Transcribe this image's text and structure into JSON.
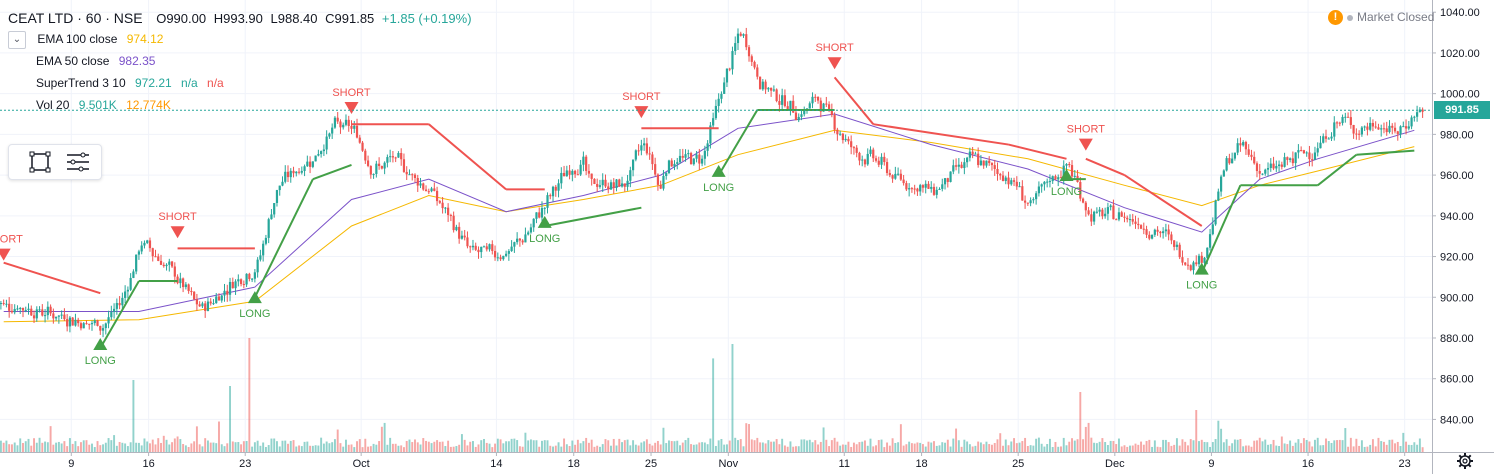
{
  "header": {
    "symbol": "CEAT LTD · 60 · NSE",
    "open": "O990.00",
    "high": "H993.90",
    "low": "L988.40",
    "close": "C991.85",
    "change": "+1.85 (+0.19%)",
    "change_color": "#26a69a"
  },
  "status": {
    "label": "Market Closed",
    "icon": "warning-icon"
  },
  "indicators": [
    {
      "name": "EMA 100 close",
      "values": [
        "974.12"
      ],
      "colors": [
        "#f5b800"
      ]
    },
    {
      "name": "EMA 50 close",
      "values": [
        "982.35"
      ],
      "colors": [
        "#7b52c9"
      ]
    },
    {
      "name": "SuperTrend 3 10",
      "values": [
        "972.21",
        "n/a",
        "n/a"
      ],
      "colors": [
        "#26a69a",
        "#26a69a",
        "#ef5350"
      ]
    },
    {
      "name": "Vol 20",
      "values": [
        "9.501K",
        "12.774K"
      ],
      "colors": [
        "#26a69a",
        "#ff9800"
      ]
    }
  ],
  "toolbox": {
    "tools": [
      "rectangle-icon",
      "list-settings-icon"
    ]
  },
  "price_tag": "991.85",
  "colors": {
    "up": "#26a69a",
    "down": "#ef5350",
    "ema100": "#f5b800",
    "ema50": "#7b52c9",
    "st_long": "#43a047",
    "st_short": "#ef5350"
  },
  "chart_data": {
    "type": "candlestick",
    "y_axis": {
      "ticks": [
        "840.00",
        "860.00",
        "880.00",
        "900.00",
        "920.00",
        "940.00",
        "960.00",
        "980.00",
        "1000.00",
        "1020.00",
        "1040.00"
      ],
      "range": [
        824,
        1046
      ]
    },
    "x_axis": {
      "ticks": [
        "9",
        "16",
        "23",
        "Oct",
        "14",
        "18",
        "25",
        "Nov",
        "11",
        "18",
        "25",
        "Dec",
        "9",
        "16",
        "23"
      ]
    },
    "trend": [
      {
        "d": "Sep 3",
        "p": 897
      },
      {
        "d": "Sep 9",
        "p": 888
      },
      {
        "d": "Sep 11",
        "p": 886
      },
      {
        "d": "Sep 12",
        "p": 899
      },
      {
        "d": "Sep 13",
        "p": 928
      },
      {
        "d": "Sep 16",
        "p": 918
      },
      {
        "d": "Sep 17",
        "p": 907
      },
      {
        "d": "Sep 18",
        "p": 893
      },
      {
        "d": "Sep 20",
        "p": 910
      },
      {
        "d": "Sep 23",
        "p": 915
      },
      {
        "d": "Sep 24",
        "p": 955
      },
      {
        "d": "Sep 26",
        "p": 970
      },
      {
        "d": "Sep 27",
        "p": 985
      },
      {
        "d": "Sep 30",
        "p": 982
      },
      {
        "d": "Oct 1",
        "p": 962
      },
      {
        "d": "Oct 3",
        "p": 968
      },
      {
        "d": "Oct 7",
        "p": 952
      },
      {
        "d": "Oct 10",
        "p": 922
      },
      {
        "d": "Oct 14",
        "p": 922
      },
      {
        "d": "Oct 15",
        "p": 932
      },
      {
        "d": "Oct 16",
        "p": 948
      },
      {
        "d": "Oct 17",
        "p": 962
      },
      {
        "d": "Oct 18",
        "p": 968
      },
      {
        "d": "Oct 21",
        "p": 960
      },
      {
        "d": "Oct 23",
        "p": 955
      },
      {
        "d": "Oct 24",
        "p": 978
      },
      {
        "d": "Oct 25",
        "p": 948
      },
      {
        "d": "Oct 28",
        "p": 960
      },
      {
        "d": "Oct 30",
        "p": 968
      },
      {
        "d": "Oct 31",
        "p": 1002
      },
      {
        "d": "Nov 1",
        "p": 1032
      },
      {
        "d": "Nov 4",
        "p": 1005
      },
      {
        "d": "Nov 5",
        "p": 998
      },
      {
        "d": "Nov 6",
        "p": 990
      },
      {
        "d": "Nov 7",
        "p": 998
      },
      {
        "d": "Nov 8",
        "p": 983
      },
      {
        "d": "Nov 11",
        "p": 970
      },
      {
        "d": "Nov 13",
        "p": 968
      },
      {
        "d": "Nov 14",
        "p": 958
      },
      {
        "d": "Nov 18",
        "p": 952
      },
      {
        "d": "Nov 19",
        "p": 962
      },
      {
        "d": "Nov 20",
        "p": 968
      },
      {
        "d": "Nov 22",
        "p": 958
      },
      {
        "d": "Nov 25",
        "p": 944
      },
      {
        "d": "Nov 26",
        "p": 958
      },
      {
        "d": "Nov 27",
        "p": 965
      },
      {
        "d": "Nov 28",
        "p": 940
      },
      {
        "d": "Nov 29",
        "p": 940
      },
      {
        "d": "Dec 2",
        "p": 940
      },
      {
        "d": "Dec 4",
        "p": 930
      },
      {
        "d": "Dec 5",
        "p": 918
      },
      {
        "d": "Dec 6",
        "p": 920
      },
      {
        "d": "Dec 9",
        "p": 965
      },
      {
        "d": "Dec 10",
        "p": 975
      },
      {
        "d": "Dec 11",
        "p": 960
      },
      {
        "d": "Dec 12",
        "p": 965
      },
      {
        "d": "Dec 16",
        "p": 975
      },
      {
        "d": "Dec 17",
        "p": 988
      },
      {
        "d": "Dec 18",
        "p": 982
      },
      {
        "d": "Dec 19",
        "p": 985
      },
      {
        "d": "Dec 20",
        "p": 980
      },
      {
        "d": "Dec 23",
        "p": 992
      }
    ],
    "ema50": [
      {
        "d": "Sep 3",
        "p": 893
      },
      {
        "d": "Sep 13",
        "p": 893
      },
      {
        "d": "Sep 23",
        "p": 905
      },
      {
        "d": "Sep 30",
        "p": 948
      },
      {
        "d": "Oct 7",
        "p": 958
      },
      {
        "d": "Oct 14",
        "p": 942
      },
      {
        "d": "Oct 18",
        "p": 950
      },
      {
        "d": "Oct 25",
        "p": 960
      },
      {
        "d": "Nov 1",
        "p": 983
      },
      {
        "d": "Nov 8",
        "p": 990
      },
      {
        "d": "Nov 18",
        "p": 975
      },
      {
        "d": "Nov 25",
        "p": 963
      },
      {
        "d": "Dec 2",
        "p": 944
      },
      {
        "d": "Dec 6",
        "p": 932
      },
      {
        "d": "Dec 11",
        "p": 958
      },
      {
        "d": "Dec 16",
        "p": 968
      },
      {
        "d": "Dec 23",
        "p": 982
      }
    ],
    "ema100": [
      {
        "d": "Sep 3",
        "p": 888
      },
      {
        "d": "Sep 13",
        "p": 889
      },
      {
        "d": "Sep 23",
        "p": 898
      },
      {
        "d": "Sep 30",
        "p": 935
      },
      {
        "d": "Oct 7",
        "p": 950
      },
      {
        "d": "Oct 14",
        "p": 942
      },
      {
        "d": "Oct 18",
        "p": 948
      },
      {
        "d": "Oct 25",
        "p": 955
      },
      {
        "d": "Nov 1",
        "p": 970
      },
      {
        "d": "Nov 8",
        "p": 982
      },
      {
        "d": "Nov 18",
        "p": 976
      },
      {
        "d": "Nov 25",
        "p": 968
      },
      {
        "d": "Dec 2",
        "p": 955
      },
      {
        "d": "Dec 6",
        "p": 945
      },
      {
        "d": "Dec 11",
        "p": 955
      },
      {
        "d": "Dec 16",
        "p": 962
      },
      {
        "d": "Dec 23",
        "p": 974
      }
    ],
    "supertrend": [
      {
        "d": "Sep 3",
        "p": 917,
        "dir": "short"
      },
      {
        "d": "Sep 11",
        "p": 902,
        "dir": "short"
      },
      {
        "d": "Sep 11",
        "p": 875,
        "dir": "long"
      },
      {
        "d": "Sep 13",
        "p": 908,
        "dir": "long"
      },
      {
        "d": "Sep 17",
        "p": 908,
        "dir": "long"
      },
      {
        "d": "Sep 17",
        "p": 924,
        "dir": "short"
      },
      {
        "d": "Sep 23",
        "p": 924,
        "dir": "short"
      },
      {
        "d": "Sep 23",
        "p": 900,
        "dir": "long"
      },
      {
        "d": "Sep 26",
        "p": 958,
        "dir": "long"
      },
      {
        "d": "Sep 30",
        "p": 965,
        "dir": "long"
      },
      {
        "d": "Sep 30",
        "p": 985,
        "dir": "short"
      },
      {
        "d": "Oct 7",
        "p": 985,
        "dir": "short"
      },
      {
        "d": "Oct 14",
        "p": 953,
        "dir": "short"
      },
      {
        "d": "Oct 16",
        "p": 953,
        "dir": "short"
      },
      {
        "d": "Oct 16",
        "p": 935,
        "dir": "long"
      },
      {
        "d": "Oct 24",
        "p": 944,
        "dir": "long"
      },
      {
        "d": "Oct 24",
        "p": 983,
        "dir": "short"
      },
      {
        "d": "Oct 31",
        "p": 983,
        "dir": "short"
      },
      {
        "d": "Oct 31",
        "p": 960,
        "dir": "long"
      },
      {
        "d": "Nov 4",
        "p": 992,
        "dir": "long"
      },
      {
        "d": "Nov 8",
        "p": 992,
        "dir": "long"
      },
      {
        "d": "Nov 8",
        "p": 1008,
        "dir": "short"
      },
      {
        "d": "Nov 13",
        "p": 985,
        "dir": "short"
      },
      {
        "d": "Nov 22",
        "p": 975,
        "dir": "short"
      },
      {
        "d": "Nov 27",
        "p": 968,
        "dir": "short"
      },
      {
        "d": "Nov 27",
        "p": 958,
        "dir": "long"
      },
      {
        "d": "Nov 28",
        "p": 958,
        "dir": "long"
      },
      {
        "d": "Nov 28",
        "p": 968,
        "dir": "short"
      },
      {
        "d": "Dec 2",
        "p": 960,
        "dir": "short"
      },
      {
        "d": "Dec 6",
        "p": 935,
        "dir": "short"
      },
      {
        "d": "Dec 6",
        "p": 912,
        "dir": "long"
      },
      {
        "d": "Dec 10",
        "p": 955,
        "dir": "long"
      },
      {
        "d": "Dec 16",
        "p": 955,
        "dir": "long"
      },
      {
        "d": "Dec 18",
        "p": 970,
        "dir": "long"
      },
      {
        "d": "Dec 23",
        "p": 972,
        "dir": "long"
      }
    ],
    "signals": [
      {
        "d": "Sep 3",
        "type": "short",
        "label": "SHORT",
        "p": 918
      },
      {
        "d": "Sep 11",
        "type": "long",
        "label": "LONG",
        "p": 880
      },
      {
        "d": "Sep 17",
        "type": "short",
        "label": "SHORT",
        "p": 929
      },
      {
        "d": "Sep 23",
        "type": "long",
        "label": "LONG",
        "p": 903
      },
      {
        "d": "Sep 30",
        "type": "short",
        "label": "SHORT",
        "p": 990
      },
      {
        "d": "Oct 16",
        "type": "long",
        "label": "LONG",
        "p": 940
      },
      {
        "d": "Oct 24",
        "type": "short",
        "label": "SHORT",
        "p": 988
      },
      {
        "d": "Oct 31",
        "type": "long",
        "label": "LONG",
        "p": 965
      },
      {
        "d": "Nov 8",
        "type": "short",
        "label": "SHORT",
        "p": 1012
      },
      {
        "d": "Nov 27",
        "type": "long",
        "label": "LONG",
        "p": 963
      },
      {
        "d": "Nov 28",
        "type": "short",
        "label": "SHORT",
        "p": 972
      },
      {
        "d": "Dec 6",
        "type": "long",
        "label": "LONG",
        "p": 917
      }
    ],
    "volume_spikes": [
      {
        "d": "Sep 13",
        "v": 0.6
      },
      {
        "d": "Sep 20",
        "v": 0.55
      },
      {
        "d": "Sep 23",
        "v": 0.95
      },
      {
        "d": "Oct 31",
        "v": 0.78
      },
      {
        "d": "Nov 1",
        "v": 0.9
      },
      {
        "d": "Nov 28",
        "v": 0.5
      },
      {
        "d": "Dec 6",
        "v": 0.35
      }
    ]
  }
}
